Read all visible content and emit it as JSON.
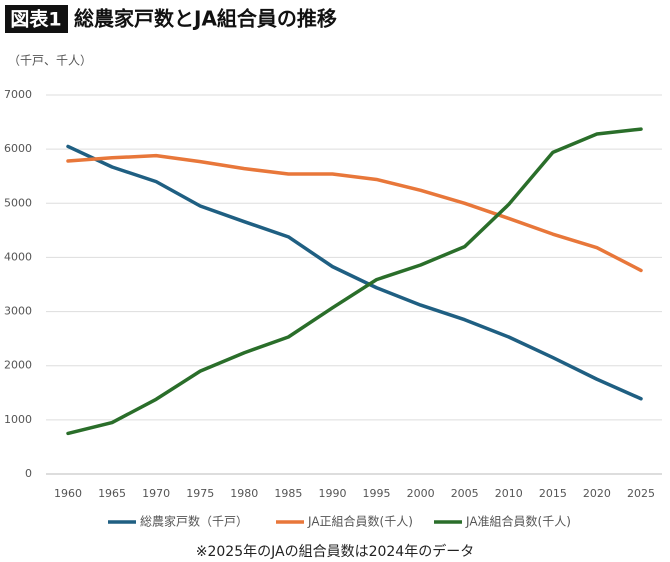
{
  "chart_data": {
    "type": "line",
    "figure_label": "図表1",
    "title": "総農家戸数とJA組合員の推移",
    "unit_label": "（千戸、千人）",
    "note": "※2025年のJAの組合員数は2024年のデータ",
    "categories": [
      "1960",
      "1965",
      "1970",
      "1975",
      "1980",
      "1985",
      "1990",
      "1995",
      "2000",
      "2005",
      "2010",
      "2015",
      "2020",
      "2025"
    ],
    "series": [
      {
        "name": "総農家戸数（千戸）",
        "color": "#1f5f82",
        "values": [
          6050,
          5670,
          5400,
          4950,
          4660,
          4380,
          3830,
          3440,
          3120,
          2850,
          2530,
          2150,
          1750,
          1390
        ]
      },
      {
        "name": "JA正組合員数(千人)",
        "color": "#e8773a",
        "values": [
          5780,
          5840,
          5880,
          5770,
          5640,
          5540,
          5540,
          5440,
          5240,
          5000,
          4720,
          4430,
          4180,
          3760
        ]
      },
      {
        "name": "JA准組合員数(千人)",
        "color": "#2a6e2a",
        "values": [
          750,
          950,
          1380,
          1900,
          2240,
          2530,
          3070,
          3590,
          3860,
          4200,
          4980,
          5940,
          6280,
          6370
        ]
      }
    ],
    "ylim": [
      0,
      7000
    ],
    "yticks": [
      0,
      1000,
      2000,
      3000,
      4000,
      5000,
      6000,
      7000
    ],
    "grid": true,
    "legend": "bottom"
  }
}
